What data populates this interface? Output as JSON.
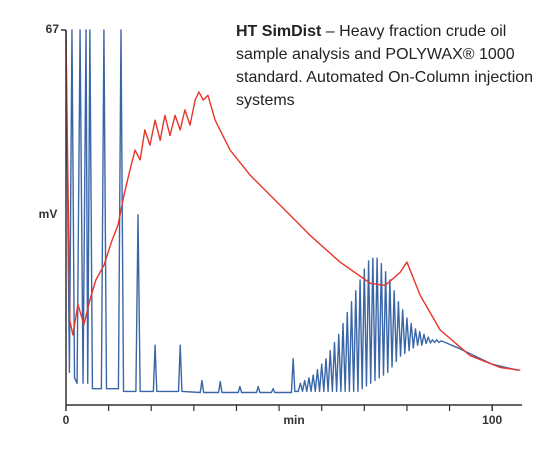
{
  "chart_data": {
    "type": "line",
    "annotation": {
      "bold": "HT SimDist",
      "text": "– Heavy fraction crude oil sample analysis and POLYWAX® 1000 standard. Automated On-Column injection systems"
    },
    "ylabel": "mV",
    "xlabel": "min",
    "xlim": [
      0,
      107
    ],
    "ylim": [
      -2,
      67
    ],
    "xticks": [
      0,
      100
    ],
    "xminor_ticks": [
      10,
      20,
      30,
      40,
      50,
      60,
      70,
      80,
      90
    ],
    "yticks": [
      67
    ],
    "series": [
      {
        "color": "#3a66a8",
        "x": [
          0,
          0.8,
          1.4,
          2.0,
          2.6,
          3.3,
          4.0,
          4.7,
          5.1,
          5.6,
          6.2,
          8.3,
          8.9,
          9.5,
          12.3,
          12.9,
          13.5,
          16.4,
          16.9,
          17.4,
          20.5,
          20.9,
          21.3,
          26.4,
          26.8,
          27.2,
          31.5,
          31.9,
          32.3,
          35.8,
          36.2,
          36.6,
          40.4,
          40.8,
          41.2,
          44.7,
          45.1,
          45.5,
          48.2,
          48.6,
          49.0,
          52.9,
          53.3,
          53.7,
          54.5,
          55,
          55.5,
          56,
          56.5,
          57,
          57.5,
          58,
          58.5,
          59,
          59.5,
          60,
          60.5,
          61,
          61.5,
          62,
          62.5,
          63,
          63.5,
          64,
          64.5,
          65,
          65.5,
          66,
          66.5,
          67,
          67.5,
          68,
          68.5,
          69,
          69.5,
          70,
          70.5,
          71,
          71.5,
          72,
          72.5,
          73,
          73.5,
          74,
          74.5,
          75,
          75.5,
          76,
          76.5,
          77,
          77.5,
          78,
          78.5,
          79,
          79.5,
          80,
          80.5,
          81,
          81.5,
          82,
          82.5,
          83,
          83.5,
          84,
          84.5,
          85,
          85.5,
          86,
          86.5,
          87,
          87.5,
          88,
          89,
          92,
          96,
          100,
          106
        ],
        "values": [
          67,
          4,
          67,
          3,
          2,
          67,
          2,
          67,
          2,
          67,
          1,
          1,
          67,
          1,
          1,
          67,
          0.5,
          0.5,
          33,
          0.5,
          0.5,
          9,
          0.5,
          0.5,
          9,
          0.5,
          0.3,
          2.5,
          0.3,
          0.3,
          2.3,
          0.3,
          0.3,
          1.4,
          0.3,
          0.3,
          1.4,
          0.3,
          0.3,
          1,
          0.3,
          0.3,
          6.5,
          0.5,
          0.5,
          2,
          0.5,
          2.5,
          0.5,
          3,
          0.5,
          3.5,
          0.5,
          4.5,
          0.5,
          5.5,
          0.5,
          6.5,
          0.5,
          8,
          0.5,
          9.5,
          0.5,
          11,
          0.5,
          13,
          0.5,
          15,
          0.5,
          17,
          0.5,
          19,
          0.5,
          21,
          1,
          23,
          1.5,
          24.5,
          2,
          25,
          2.5,
          25,
          3,
          24,
          3.5,
          22.5,
          4,
          21,
          5,
          19,
          6,
          17,
          7,
          15.5,
          7.5,
          14,
          8,
          13,
          8.5,
          12,
          9,
          11.5,
          9,
          11,
          9.3,
          10.5,
          9.4,
          10,
          9.5,
          10,
          9.5,
          9.8,
          9.5,
          8.5,
          7,
          5.5,
          4.4
        ]
      },
      {
        "color": "#e8352b",
        "x": [
          0,
          0.9,
          1.6,
          2.8,
          4.2,
          5.6,
          7.0,
          8.9,
          10.8,
          12.2,
          13.6,
          15.0,
          16.2,
          17.4,
          18.5,
          19.7,
          20.9,
          22.1,
          23.2,
          24.4,
          25.6,
          26.8,
          27.9,
          29.1,
          30.3,
          31.2,
          32.2,
          33.3,
          35,
          38.5,
          43.2,
          50.2,
          57.3,
          64.3,
          71.4,
          74.9,
          78.4,
          80,
          83.1,
          87.8,
          94.8,
          101.9,
          106.6
        ],
        "values": [
          65.2,
          13.6,
          10.9,
          16.5,
          12.8,
          17.3,
          21,
          23.7,
          28.3,
          31.1,
          36.6,
          41.2,
          44.9,
          43.1,
          48.6,
          45.8,
          50.4,
          46.7,
          51.3,
          47.6,
          51.3,
          48.6,
          52.3,
          49.5,
          54.1,
          55.6,
          54.1,
          55,
          50.4,
          44.9,
          40.3,
          34.8,
          29.2,
          24.3,
          20.4,
          20,
          22.4,
          24.3,
          18.2,
          11.8,
          7.1,
          4.9,
          4.4
        ]
      }
    ]
  }
}
